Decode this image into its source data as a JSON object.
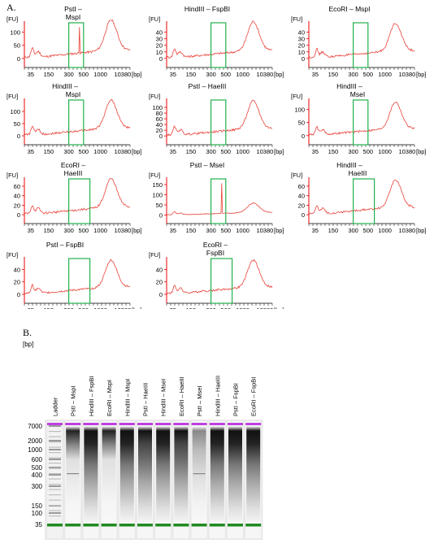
{
  "panel_a_label": "A.",
  "panel_b_label": "B.",
  "chart_data": [
    {
      "type": "line",
      "title": "PstI –\nMspI",
      "ylabel": "[FU]",
      "xlabel": "[bp]",
      "yticks": [
        0,
        50,
        100
      ],
      "ylim": [
        -10,
        130
      ],
      "xticks": [
        "35",
        "150",
        "300",
        "500",
        "1000",
        "10380"
      ],
      "window_bp": [
        300,
        500
      ],
      "spike": true,
      "peak": 120
    },
    {
      "type": "line",
      "title": "HindIII – FspBI",
      "ylabel": "[FU]",
      "xlabel": "[bp]",
      "yticks": [
        0,
        10,
        20,
        30,
        40
      ],
      "ylim": [
        -4,
        52
      ],
      "xticks": [
        "35",
        "150",
        "300",
        "500",
        "1000",
        "10380"
      ],
      "window_bp": [
        300,
        500
      ],
      "spike": false,
      "peak": 46
    },
    {
      "type": "line",
      "title": "EcoRI – MspI",
      "ylabel": "[FU]",
      "xlabel": "[bp]",
      "yticks": [
        0,
        10,
        20,
        30,
        40
      ],
      "ylim": [
        -4,
        52
      ],
      "xticks": [
        "35",
        "150",
        "300",
        "500",
        "1000",
        "10380"
      ],
      "window_bp": [
        300,
        500
      ],
      "spike": false,
      "peak": 44
    },
    {
      "type": "line",
      "title": "HindIII –\nMspI",
      "ylabel": "[FU]",
      "xlabel": "[bp]",
      "yticks": [
        0,
        50,
        100
      ],
      "ylim": [
        -10,
        140
      ],
      "xticks": [
        "35",
        "150",
        "300",
        "500",
        "1000",
        "10380"
      ],
      "window_bp": [
        300,
        500
      ],
      "spike": false,
      "peak": 120
    },
    {
      "type": "line",
      "title": "PstI – HaeIII",
      "ylabel": "[FU]",
      "xlabel": "[bp]",
      "yticks": [
        0,
        20,
        40,
        60,
        80,
        100
      ],
      "ylim": [
        -8,
        120
      ],
      "xticks": [
        "35",
        "150",
        "300",
        "500",
        "1000",
        "10380"
      ],
      "window_bp": [
        300,
        500
      ],
      "spike": false,
      "peak": 100
    },
    {
      "type": "line",
      "title": "HindIII –\nMseI",
      "ylabel": "[FU]",
      "xlabel": "[bp]",
      "yticks": [
        0,
        50,
        100
      ],
      "ylim": [
        -10,
        130
      ],
      "xticks": [
        "35",
        "150",
        "300",
        "500",
        "1000",
        "10380"
      ],
      "window_bp": [
        300,
        500
      ],
      "spike": false,
      "peak": 105
    },
    {
      "type": "line",
      "title": "EcoRI –\nHaeIII",
      "ylabel": "[FU]",
      "xlabel": "[bp]",
      "yticks": [
        0,
        20,
        40,
        60
      ],
      "ylim": [
        -5,
        72
      ],
      "xticks": [
        "35",
        "150",
        "300",
        "500",
        "1000",
        "10380"
      ],
      "window_bp": [
        300,
        600
      ],
      "spike": false,
      "peak": 62
    },
    {
      "type": "line",
      "title": "PstI – MseI",
      "ylabel": "[FU]",
      "xlabel": "[bp]",
      "yticks": [
        0,
        50,
        100,
        150
      ],
      "ylim": [
        -10,
        170
      ],
      "xticks": [
        "35",
        "150",
        "300",
        "500",
        "1000",
        "10380"
      ],
      "window_bp": [
        300,
        500
      ],
      "spike": true,
      "peak": 48
    },
    {
      "type": "line",
      "title": "HindIII –\nHaeIII",
      "ylabel": "[FU]",
      "xlabel": "[bp]",
      "yticks": [
        0,
        20,
        40,
        60
      ],
      "ylim": [
        -5,
        72
      ],
      "xticks": [
        "35",
        "150",
        "300",
        "500",
        "1000",
        "10380"
      ],
      "window_bp": [
        300,
        600
      ],
      "spike": false,
      "peak": 60
    },
    {
      "type": "line",
      "title": "PstI – FspBI",
      "ylabel": "[FU]",
      "xlabel": "[bp]",
      "yticks": [
        0,
        20,
        40
      ],
      "ylim": [
        -4,
        55
      ],
      "xticks": [
        "35",
        "150",
        "300",
        "500",
        "1000",
        "10380"
      ],
      "window_bp": [
        300,
        600
      ],
      "spike": false,
      "peak": 45
    },
    {
      "type": "line",
      "title": "EcoRI –\nFspBI",
      "ylabel": "[FU]",
      "xlabel": "[bp]",
      "yticks": [
        0,
        20,
        40
      ],
      "ylim": [
        -4,
        55
      ],
      "xticks": [
        "35",
        "150",
        "300",
        "500",
        "1000",
        "10380"
      ],
      "window_bp": [
        300,
        600
      ],
      "spike": false,
      "peak": 45
    }
  ],
  "gel": {
    "unit": "[bp]",
    "ladder_ticks": [
      "7000",
      "2000",
      "1000",
      "600",
      "500",
      "400",
      "300",
      "150",
      "100",
      "35"
    ],
    "lanes": [
      "Ladder",
      "PstI – MspI",
      "HindIII – FspBI",
      "EcoRI – MspI",
      "HindIII – MspI",
      "PstI – HaeIII",
      "HindIII – MseI",
      "EcoRI – HaeIII",
      "PstI – MseI",
      "HindIII – HaeIII",
      "PstI – FspBI",
      "EcoRI – FspBI"
    ],
    "upper_marker_color": "#c040e0",
    "lower_marker_color": "#1f8a1f",
    "trace_color": "#e8433a",
    "window_color": "#22b14c"
  }
}
